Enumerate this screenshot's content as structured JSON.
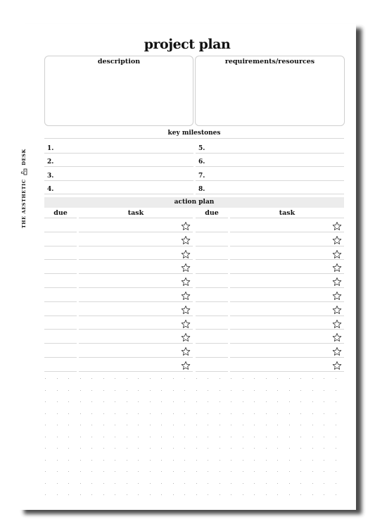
{
  "page_title": "project plan",
  "description_label": "description",
  "requirements_label": "requirements/resources",
  "milestones": {
    "heading": "key milestones",
    "left_numbers": [
      "1.",
      "2.",
      "3.",
      "4."
    ],
    "right_numbers": [
      "5.",
      "6.",
      "7.",
      "8."
    ]
  },
  "action_plan": {
    "heading": "action plan",
    "left_due": "due",
    "left_task": "task",
    "right_due": "due",
    "right_task": "task",
    "rows": 11,
    "star_icon": "star-outline-icon"
  },
  "brand": {
    "left": "THE AESTHETIC",
    "right": "DESK",
    "logo_icon": "desk-lamp-icon"
  }
}
